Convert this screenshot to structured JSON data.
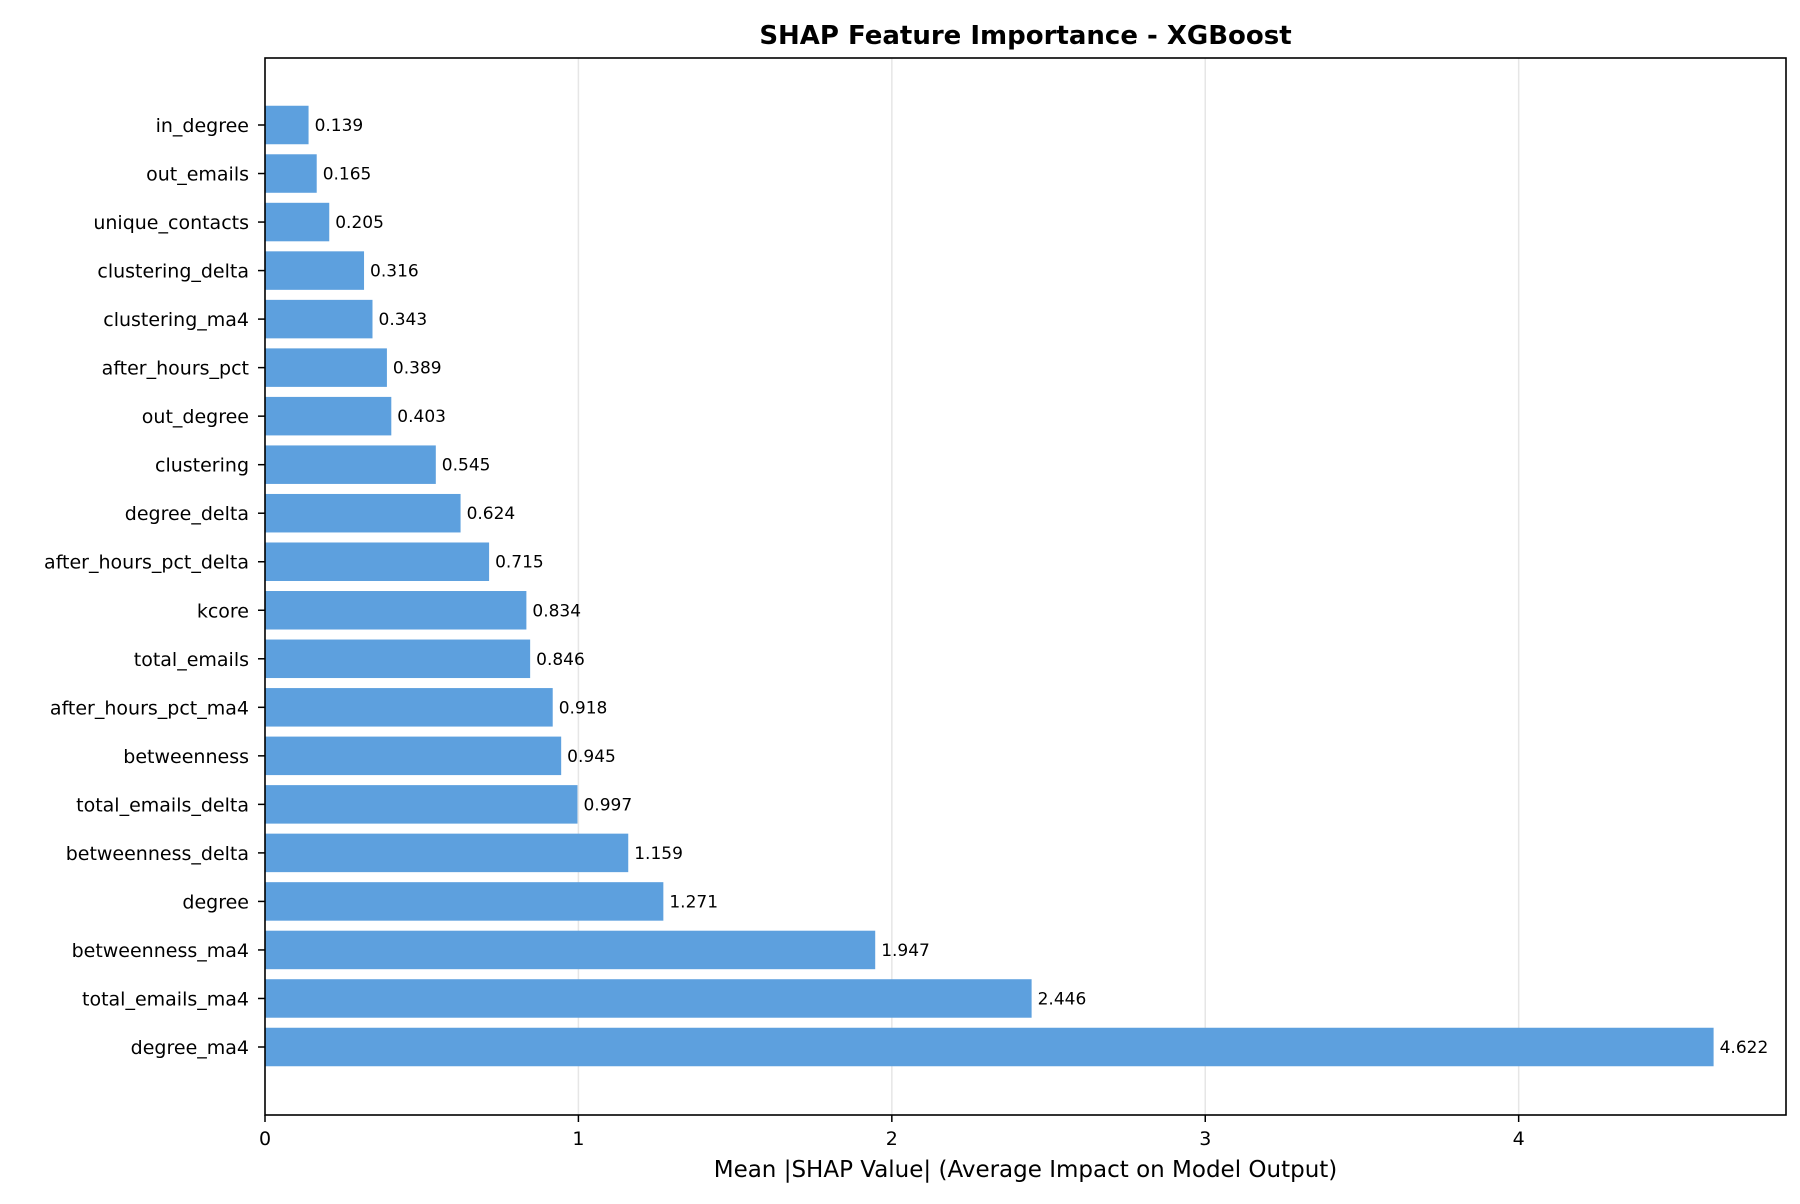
{
  "chart_data": {
    "type": "bar",
    "orientation": "horizontal",
    "title": "SHAP Feature Importance - XGBoost",
    "xlabel": "Mean |SHAP Value| (Average Impact on Model Output)",
    "ylabel": "",
    "xlim": [
      0,
      4.853
    ],
    "xticks": [
      0,
      1,
      2,
      3,
      4
    ],
    "xtick_labels": [
      "0",
      "1",
      "2",
      "3",
      "4"
    ],
    "grid": "vertical",
    "bar_color": "#5da0de",
    "categories": [
      "in_degree",
      "out_emails",
      "unique_contacts",
      "clustering_delta",
      "clustering_ma4",
      "after_hours_pct",
      "out_degree",
      "clustering",
      "degree_delta",
      "after_hours_pct_delta",
      "kcore",
      "total_emails",
      "after_hours_pct_ma4",
      "betweenness",
      "total_emails_delta",
      "betweenness_delta",
      "degree",
      "betweenness_ma4",
      "total_emails_ma4",
      "degree_ma4"
    ],
    "values": [
      0.139,
      0.165,
      0.205,
      0.316,
      0.343,
      0.389,
      0.403,
      0.545,
      0.624,
      0.715,
      0.834,
      0.846,
      0.918,
      0.945,
      0.997,
      1.159,
      1.271,
      1.947,
      2.446,
      4.622
    ],
    "value_labels": [
      "0.139",
      "0.165",
      "0.205",
      "0.316",
      "0.343",
      "0.389",
      "0.403",
      "0.545",
      "0.624",
      "0.715",
      "0.834",
      "0.846",
      "0.918",
      "0.945",
      "0.997",
      "1.159",
      "1.271",
      "1.947",
      "2.446",
      "4.622"
    ]
  }
}
